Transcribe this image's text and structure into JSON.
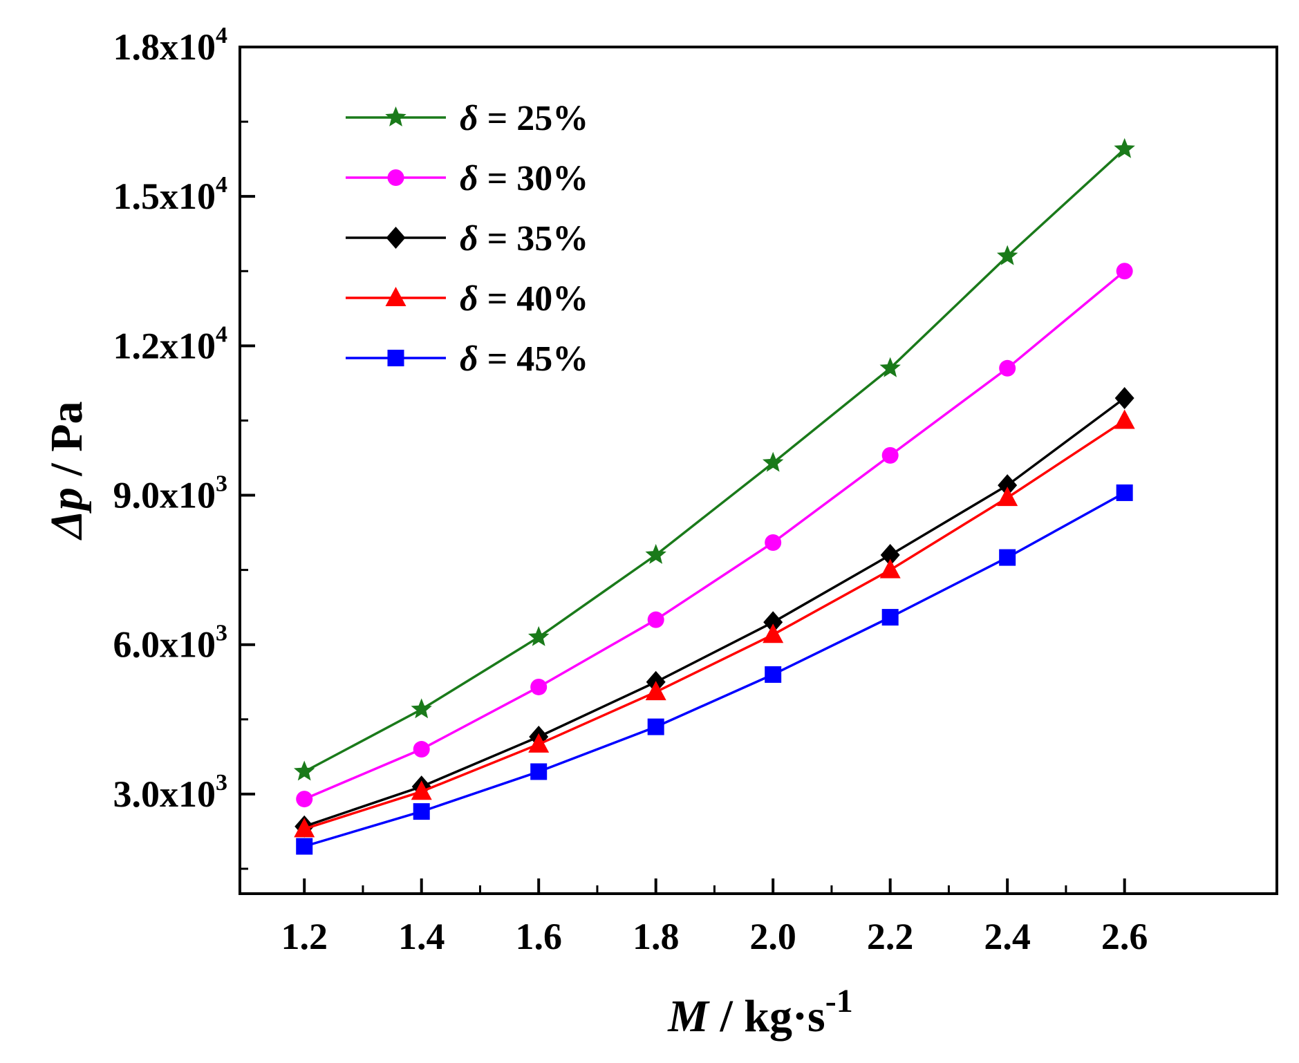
{
  "chart_data": {
    "type": "line",
    "title": "",
    "x": [
      1.2,
      1.4,
      1.6,
      1.8,
      2.0,
      2.2,
      2.4,
      2.6
    ],
    "xlim": [
      1.09,
      2.86
    ],
    "ylim": [
      1000,
      18000
    ],
    "x_ticks": [
      "1.2",
      "1.4",
      "1.6",
      "1.8",
      "2.0",
      "2.2",
      "2.4",
      "2.6"
    ],
    "y_ticks": [
      {
        "value": 3000,
        "mantissa": "3.0x10",
        "exponent": "3"
      },
      {
        "value": 6000,
        "mantissa": "6.0x10",
        "exponent": "3"
      },
      {
        "value": 9000,
        "mantissa": "9.0x10",
        "exponent": "3"
      },
      {
        "value": 12000,
        "mantissa": "1.2x10",
        "exponent": "4"
      },
      {
        "value": 15000,
        "mantissa": "1.5x10",
        "exponent": "4"
      },
      {
        "value": 18000,
        "mantissa": "1.8x10",
        "exponent": "4"
      }
    ],
    "xlabel": {
      "symbol": "M",
      "unit": " / kg·s",
      "exponent": "-1"
    },
    "ylabel": {
      "symbol": "Δp",
      "unit": " / Pa"
    },
    "legend_position": "top-left",
    "series": [
      {
        "name": "δ = 25%",
        "symbol": "δ",
        "rest": " = 25%",
        "color": "#1a7a1a",
        "marker": "star",
        "values": [
          3450,
          4700,
          6150,
          7800,
          9650,
          11550,
          13800,
          15950
        ]
      },
      {
        "name": "δ = 30%",
        "symbol": "δ",
        "rest": " = 30%",
        "color": "#ff00ff",
        "marker": "circle",
        "values": [
          2900,
          3900,
          5150,
          6500,
          8050,
          9800,
          11550,
          13500
        ]
      },
      {
        "name": "δ = 35%",
        "symbol": "δ",
        "rest": " = 35%",
        "color": "#000000",
        "marker": "diamond",
        "values": [
          2350,
          3150,
          4150,
          5250,
          6450,
          7800,
          9200,
          10950
        ]
      },
      {
        "name": "δ = 40%",
        "symbol": "δ",
        "rest": " = 40%",
        "color": "#ff0000",
        "marker": "triangle",
        "values": [
          2300,
          3050,
          4000,
          5050,
          6200,
          7500,
          8950,
          10500
        ]
      },
      {
        "name": "δ = 45%",
        "symbol": "δ",
        "rest": " = 45%",
        "color": "#0000ff",
        "marker": "square",
        "values": [
          1950,
          2650,
          3450,
          4350,
          5400,
          6550,
          7750,
          9050
        ]
      }
    ]
  }
}
